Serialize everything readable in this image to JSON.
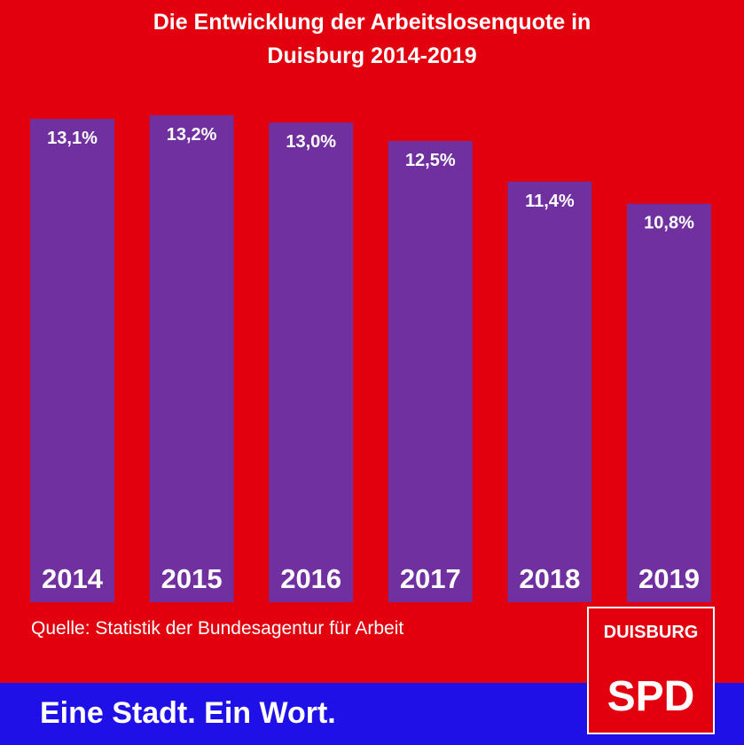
{
  "header": {
    "title_line1": "Die Entwicklung der Arbeitslosenquote in",
    "title_line2": "Duisburg 2014-2019"
  },
  "source": "Quelle: Statistik der Bundesagentur für Arbeit",
  "footer": {
    "slogan": "Eine Stadt. Ein Wort."
  },
  "logo": {
    "city": "DUISBURG",
    "party": "SPD"
  },
  "colors": {
    "background": "#e2000f",
    "bar": "#7030a0",
    "band": "#1f10e8",
    "text": "#ffffff"
  },
  "chart_data": {
    "type": "bar",
    "title": "Die Entwicklung der Arbeitslosenquote in Duisburg 2014-2019",
    "categories": [
      "2014",
      "2015",
      "2016",
      "2017",
      "2018",
      "2019"
    ],
    "values": [
      13.1,
      13.2,
      13.0,
      12.5,
      11.4,
      10.8
    ],
    "value_labels": [
      "13,1%",
      "13,2%",
      "13,0%",
      "12,5%",
      "11,4%",
      "10,8%"
    ],
    "unit": "%",
    "xlabel": "",
    "ylabel": "",
    "grid": false,
    "legend": "none"
  }
}
